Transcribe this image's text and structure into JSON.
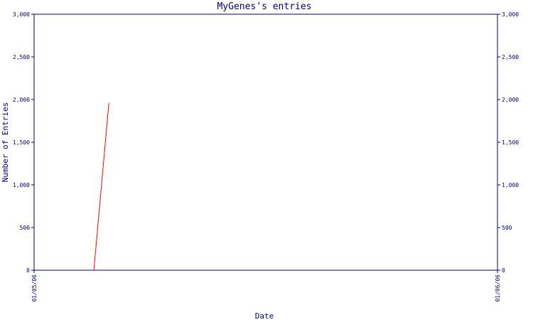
{
  "chart_data": {
    "type": "line",
    "title": "MyGenes's entries",
    "xlabel": "Date",
    "ylabel": "Number of Entries",
    "ylim": [
      0,
      3000
    ],
    "y_ticks": [
      0,
      500,
      1000,
      1500,
      2000,
      2500,
      3000
    ],
    "y_tick_labels": [
      "0",
      "500",
      "1,000",
      "1,500",
      "2,000",
      "2,500",
      "3,000"
    ],
    "x_range": [
      "2006-05-01",
      "2006-06-01"
    ],
    "x_tick_labels": [
      "01/05/06",
      "01/06/06"
    ],
    "series": [
      {
        "points": [
          {
            "x": "2006-05-05",
            "y": 0
          },
          {
            "x": "2006-05-06",
            "y": 1960
          }
        ]
      }
    ],
    "grid": false,
    "right_axis_mirror": true,
    "colors": {
      "axis": "#000080",
      "text": "#000080",
      "line": "#ff0000"
    }
  }
}
